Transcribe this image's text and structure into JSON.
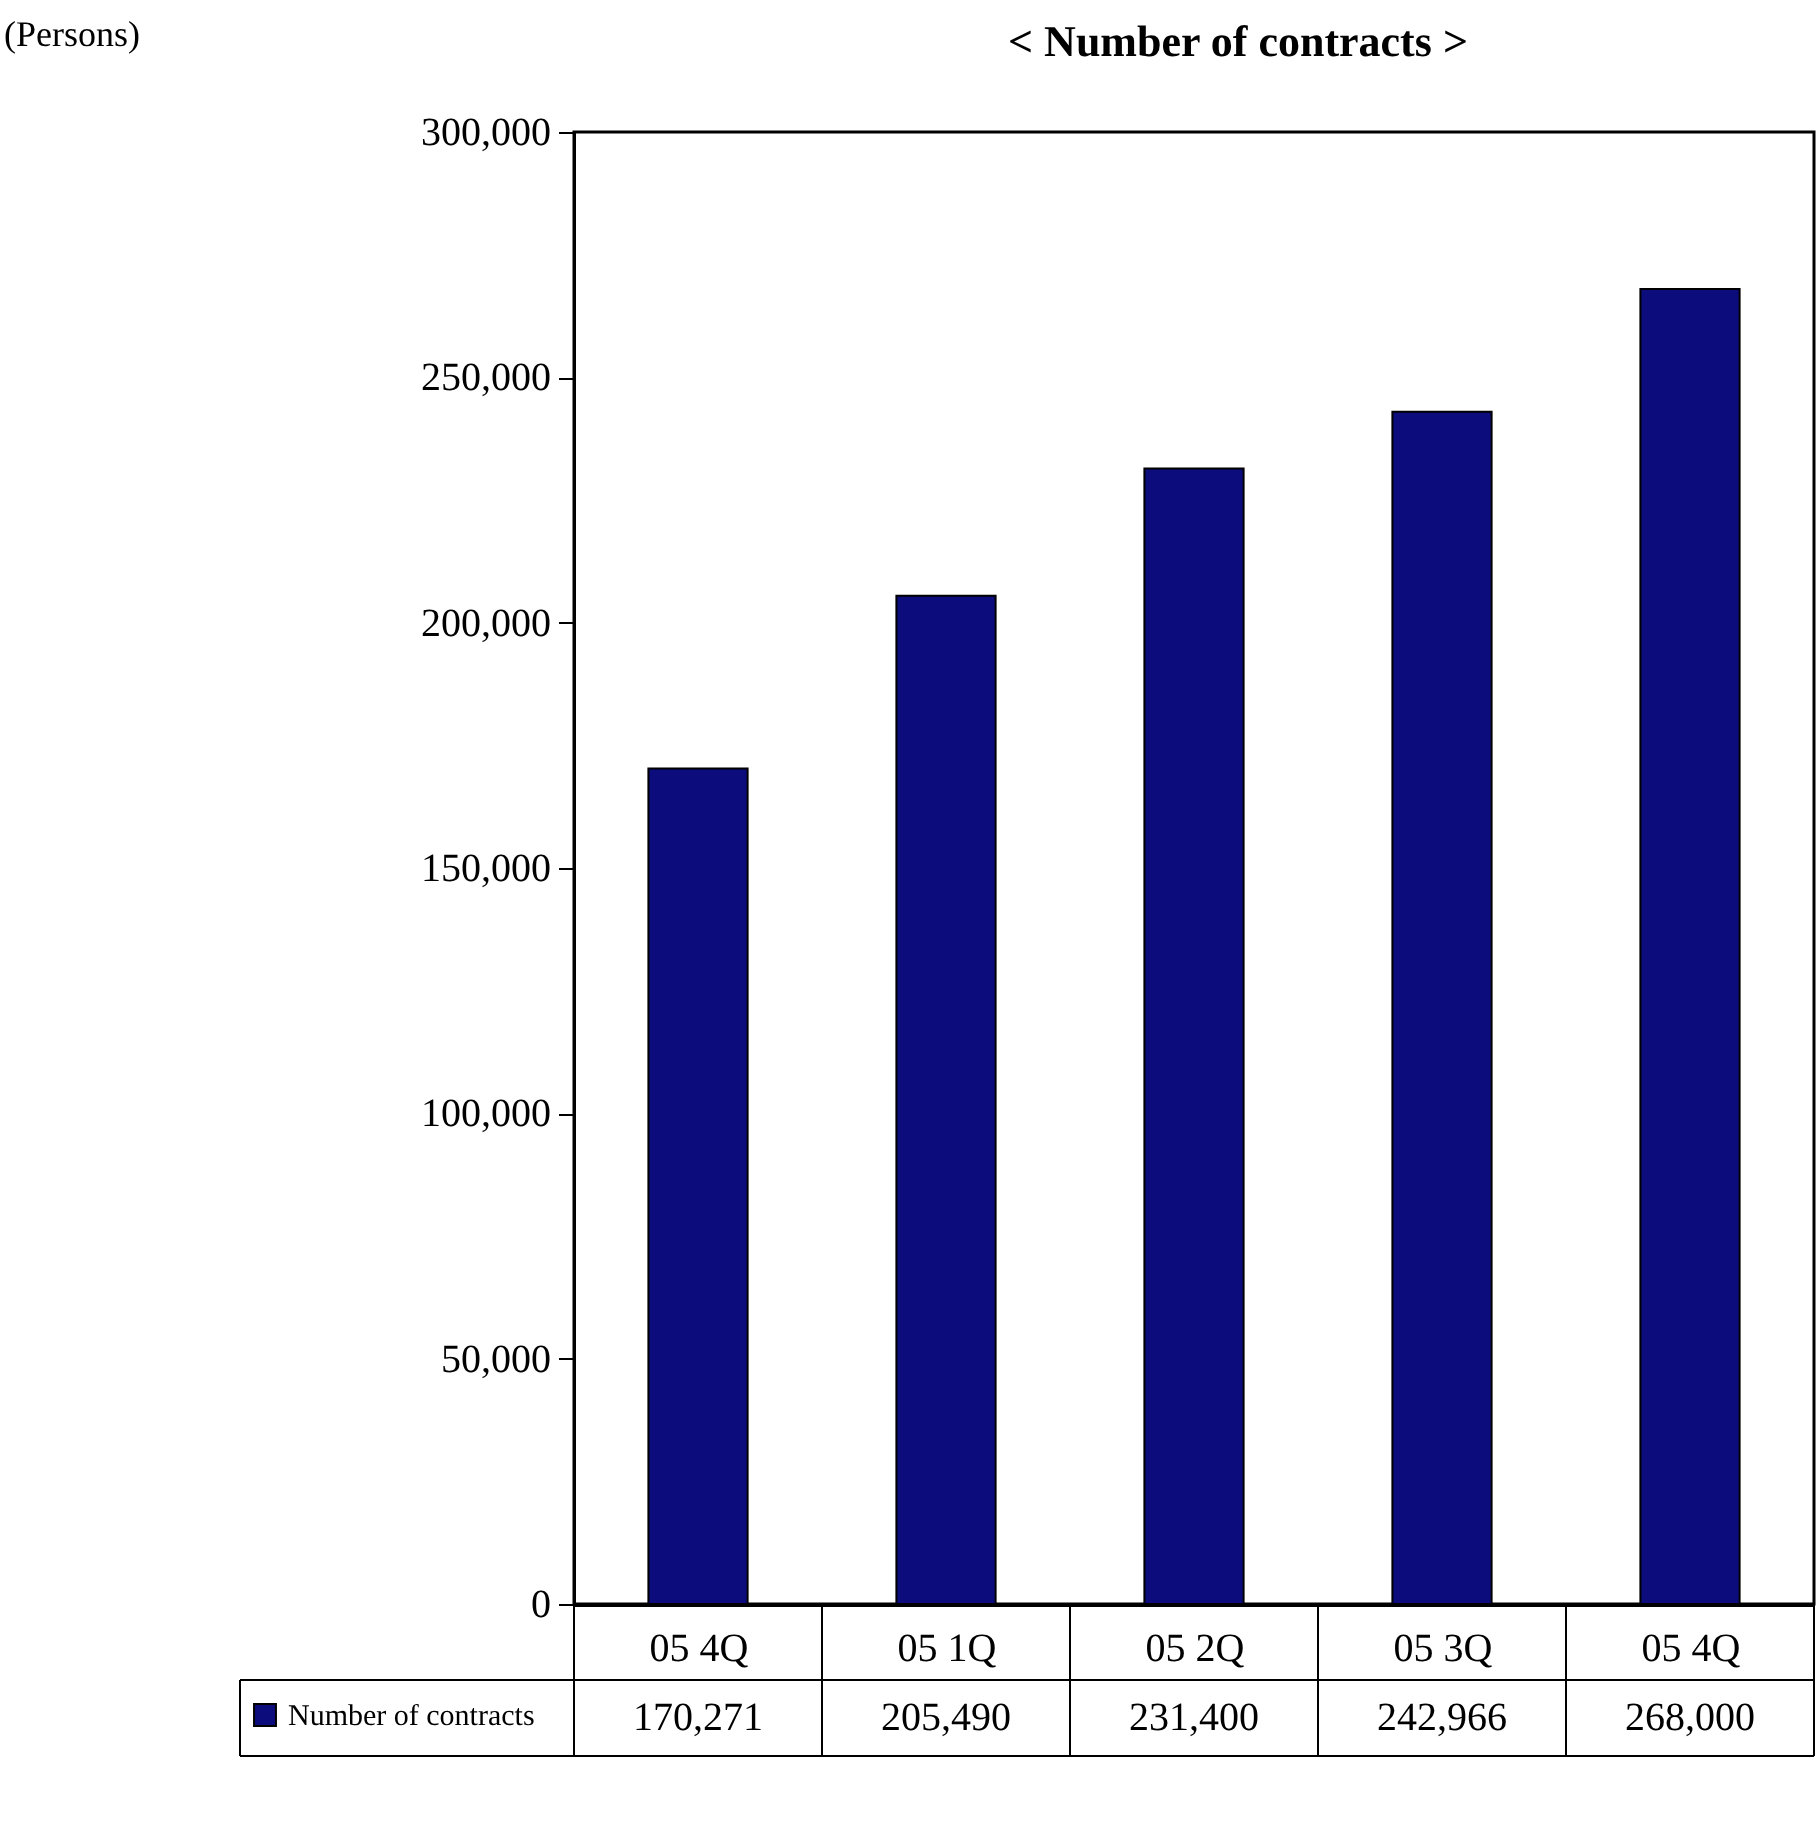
{
  "chart_data": {
    "type": "bar",
    "title": "< Number of contracts >",
    "annotations": [
      "(Persons)"
    ],
    "categories": [
      "05 4Q",
      "05 1Q",
      "05 2Q",
      "05 3Q",
      "05 4Q"
    ],
    "series": [
      {
        "name": "Number of contracts",
        "color": "#0c0c7c",
        "values": [
          170271,
          205490,
          231400,
          242966,
          268000
        ],
        "value_labels": [
          "170,271",
          "205,490",
          "231,400",
          "242,966",
          "268,000"
        ]
      }
    ],
    "ylim": [
      0,
      300000
    ],
    "yticks": [
      {
        "value": 0,
        "label": "0"
      },
      {
        "value": 50000,
        "label": "50,000"
      },
      {
        "value": 100000,
        "label": "100,000"
      },
      {
        "value": 150000,
        "label": "150,000"
      },
      {
        "value": 200000,
        "label": "200,000"
      },
      {
        "value": 250000,
        "label": "250,000"
      },
      {
        "value": 300000,
        "label": "300,000"
      }
    ],
    "grid": false,
    "legend": "bottom left"
  }
}
